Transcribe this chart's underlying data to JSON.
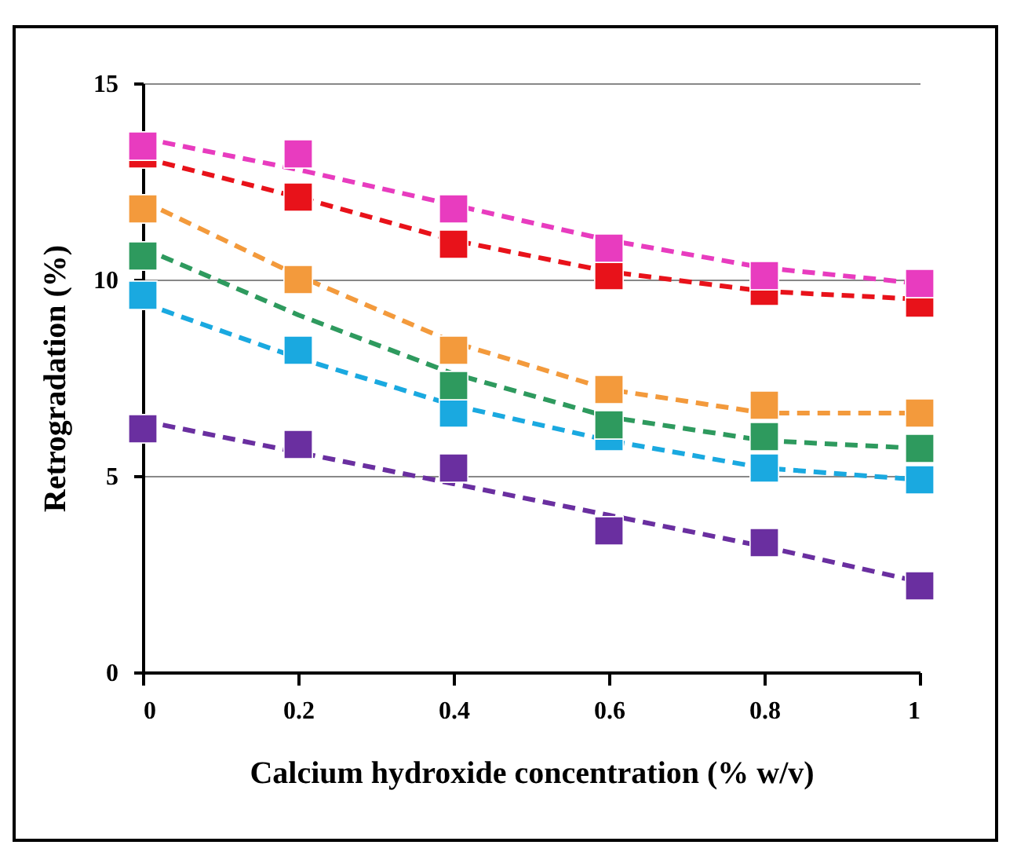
{
  "chart_data": {
    "type": "scatter",
    "xlabel": "Calcium hydroxide concentration (% w/v)",
    "ylabel": "Retrogradation (%)",
    "x": [
      0,
      0.2,
      0.4,
      0.6,
      0.8,
      1
    ],
    "xlim": [
      0,
      1
    ],
    "xticks": [
      0,
      0.2,
      0.4,
      0.6,
      0.8,
      1
    ],
    "ylim": [
      0,
      15
    ],
    "yticks": [
      0,
      5,
      10,
      15
    ],
    "grid": "y",
    "marker": "square",
    "series": [
      {
        "type": "line",
        "line_style": "dashed",
        "marker": "none",
        "color": "#e83cbf",
        "values": [
          13.6,
          12.8,
          11.9,
          11.0,
          10.3,
          9.9
        ]
      },
      {
        "type": "line",
        "line_style": "dashed",
        "marker": "none",
        "color": "#e8121a",
        "values": [
          13.1,
          12.1,
          11.0,
          10.2,
          9.7,
          9.5
        ]
      },
      {
        "type": "line",
        "line_style": "dashed",
        "marker": "none",
        "color": "#f39a3c",
        "values": [
          12.0,
          10.1,
          8.4,
          7.2,
          6.6,
          6.6
        ]
      },
      {
        "type": "line",
        "line_style": "dashed",
        "marker": "none",
        "color": "#2e9a5e",
        "values": [
          10.8,
          9.1,
          7.6,
          6.5,
          5.9,
          5.7
        ]
      },
      {
        "type": "line",
        "line_style": "dashed",
        "marker": "none",
        "color": "#1aa9e0",
        "values": [
          9.4,
          8.0,
          6.8,
          5.9,
          5.2,
          4.9
        ]
      },
      {
        "type": "line",
        "line_style": "dashed",
        "marker": "none",
        "color": "#6a2fa0",
        "values": [
          6.4,
          5.6,
          4.8,
          4.0,
          3.2,
          2.3
        ]
      },
      {
        "color": "#e83cbf",
        "values": [
          13.4,
          13.2,
          11.8,
          10.8,
          10.1,
          9.9
        ]
      },
      {
        "color": "#e8121a",
        "values": [
          13.2,
          12.1,
          10.9,
          10.1,
          9.7,
          9.4
        ]
      },
      {
        "color": "#f39a3c",
        "values": [
          11.8,
          10.0,
          8.2,
          7.2,
          6.8,
          6.6
        ]
      },
      {
        "color": "#2e9a5e",
        "values": [
          10.6,
          null,
          7.3,
          6.3,
          6.0,
          5.7
        ]
      },
      {
        "color": "#1aa9e0",
        "values": [
          9.6,
          8.2,
          6.6,
          6.0,
          5.2,
          4.9
        ]
      },
      {
        "color": "#6a2fa0",
        "values": [
          6.2,
          5.8,
          5.2,
          3.6,
          3.3,
          2.2
        ]
      }
    ]
  }
}
